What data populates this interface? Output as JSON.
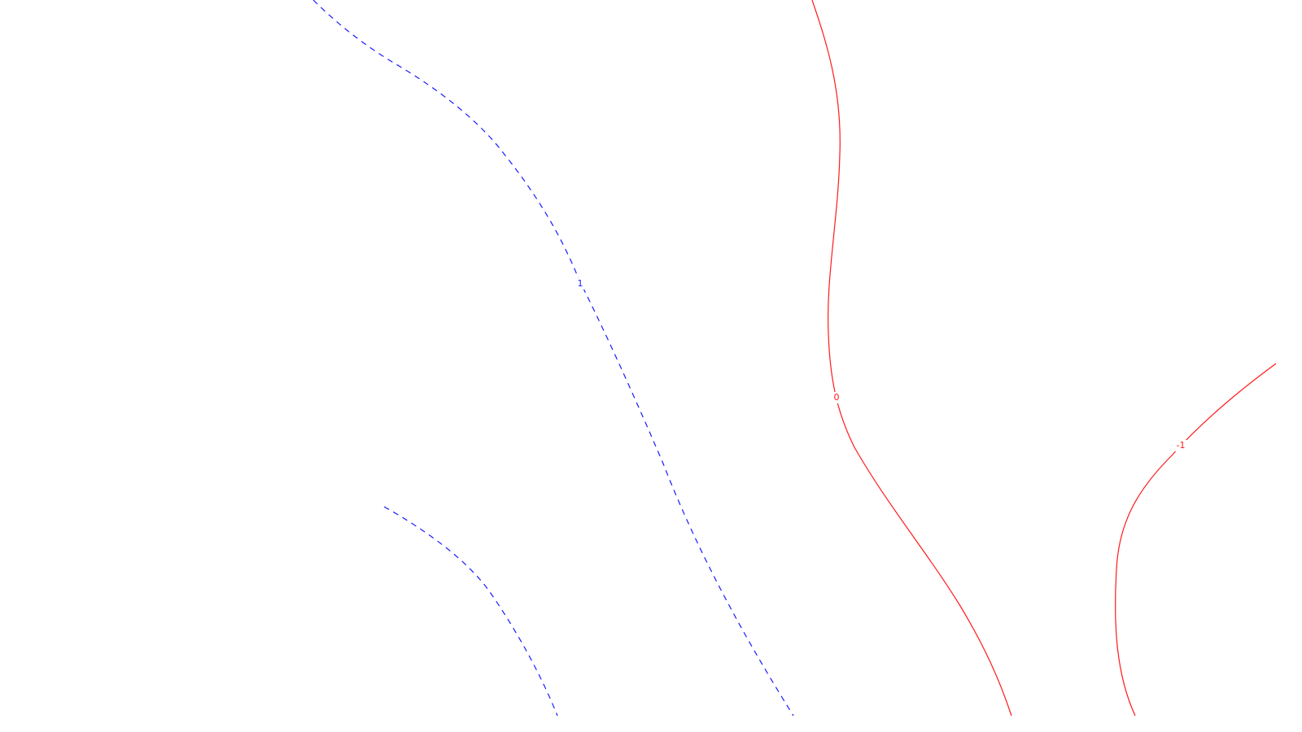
{
  "contour_plot": {
    "colors": {
      "positive": "#1a1aff",
      "zero": "#ff1a1a",
      "negative": "#ff1a1a"
    },
    "contours": [
      {
        "id": "contour-1-upper",
        "level": "1",
        "style": "dashed",
        "color_key": "positive",
        "labeled": true
      },
      {
        "id": "contour-1-lower",
        "level": "1",
        "style": "dashed",
        "color_key": "positive",
        "labeled": false
      },
      {
        "id": "contour-0",
        "level": "0",
        "style": "solid",
        "color_key": "zero",
        "labeled": true
      },
      {
        "id": "contour-neg1",
        "level": "-1",
        "style": "solid",
        "color_key": "negative",
        "labeled": true
      }
    ],
    "labels": {
      "contour_1": "1",
      "contour_0": "0",
      "contour_neg1": "-1"
    }
  }
}
